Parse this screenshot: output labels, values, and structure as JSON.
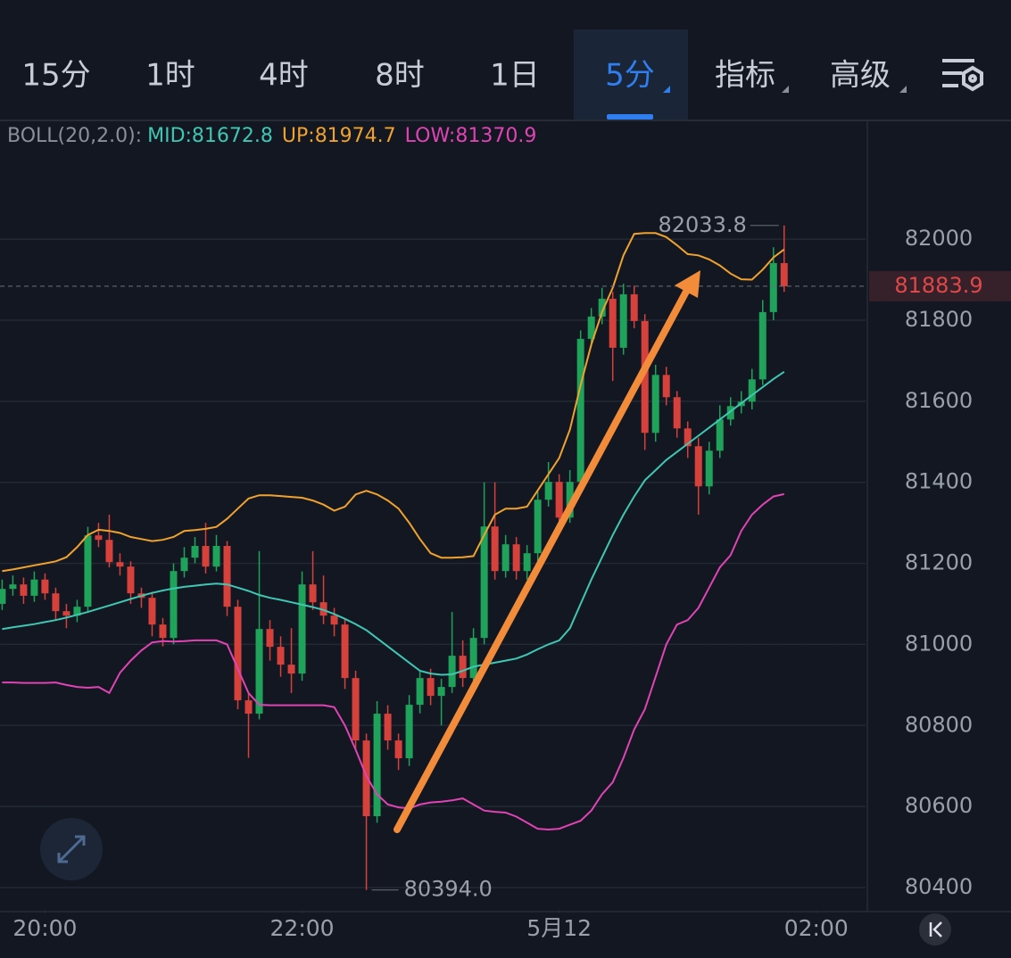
{
  "tabs": [
    "15分",
    "1时",
    "4时",
    "8时",
    "1日",
    "5分",
    "指标",
    "高级"
  ],
  "chart_data": {
    "type": "candlestick",
    "boll_legend": {
      "title": "BOLL(20,2.0):",
      "items": [
        "MID:81672.8",
        "UP:81974.7",
        "LOW:81370.9"
      ]
    },
    "ylim": [
      80345,
      82293
    ],
    "yticks": [
      80400,
      80600,
      80800,
      81000,
      81200,
      81400,
      81600,
      81800,
      82000
    ],
    "xlim": [
      -0.2,
      80.6
    ],
    "xticks": [
      {
        "value": 4,
        "label": "20:00"
      },
      {
        "value": 28,
        "label": "22:00"
      },
      {
        "value": 52,
        "label": "5月12"
      },
      {
        "value": 76,
        "label": "02:00"
      }
    ],
    "grid": true,
    "up_color": "#1fa35a",
    "down_color": "#d6413b",
    "annotations": {
      "high": 82033.8,
      "low": {
        "value": 80394,
        "label": "80394.0"
      },
      "last": 81883.9
    },
    "open": [
      81100,
      81137,
      81148,
      81120,
      81160,
      81126,
      81082,
      81071,
      81093,
      81269,
      81258,
      81203,
      81192,
      81126,
      81115,
      81049,
      81016,
      81181,
      81214,
      81243,
      81192,
      81243,
      81093,
      80862,
      80829,
      81038,
      80994,
      80950,
      80928,
      81148,
      81104,
      81071,
      81049,
      80917,
      80763,
      80576,
      80829,
      80763,
      80719,
      80851,
      80917,
      80873,
      80895,
      80972,
      80917,
      81016,
      81291,
      81181,
      81247,
      81181,
      81225,
      81357,
      81401,
      81313,
      81401,
      81754,
      81809,
      81853,
      81732,
      81864,
      81798,
      81522,
      81665,
      81610,
      81533,
      81489,
      81390,
      81478,
      81555,
      81588,
      81599,
      81654,
      81820,
      81941
    ],
    "high": [
      81160,
      81170,
      81165,
      81180,
      81175,
      81140,
      81100,
      81110,
      81290,
      81300,
      81320,
      81225,
      81205,
      81140,
      81130,
      81065,
      81200,
      81240,
      81265,
      81300,
      81270,
      81255,
      81110,
      80880,
      81230,
      81060,
      81020,
      81040,
      81180,
      81230,
      81170,
      81090,
      81065,
      80935,
      80780,
      80860,
      80850,
      80780,
      80875,
      80935,
      80940,
      80915,
      81080,
      81010,
      81040,
      81400,
      81400,
      81270,
      81265,
      81245,
      81380,
      81450,
      81420,
      81430,
      81775,
      81830,
      81880,
      81870,
      81890,
      81885,
      81815,
      81690,
      81685,
      81625,
      81550,
      81510,
      81500,
      81590,
      81610,
      81625,
      81680,
      81850,
      81980,
      82033.8
    ],
    "low": [
      81085,
      81120,
      81100,
      81105,
      81110,
      81060,
      81040,
      81055,
      81080,
      81240,
      81190,
      81170,
      81100,
      81090,
      81020,
      80995,
      81000,
      81165,
      81200,
      81175,
      81180,
      81070,
      80840,
      80720,
      80815,
      80960,
      80920,
      80880,
      80910,
      81085,
      81050,
      81020,
      80890,
      80740,
      80394,
      80560,
      80740,
      80690,
      80700,
      80830,
      80850,
      80800,
      80880,
      80895,
      80900,
      81000,
      81160,
      81165,
      81160,
      81160,
      81205,
      81340,
      81290,
      81300,
      81385,
      81735,
      81790,
      81650,
      81715,
      81780,
      81480,
      81500,
      81590,
      81510,
      81460,
      81320,
      81370,
      81460,
      81540,
      81570,
      81580,
      81640,
      81800,
      81870
    ],
    "close": [
      81137,
      81148,
      81120,
      81160,
      81126,
      81082,
      81071,
      81093,
      81269,
      81258,
      81203,
      81192,
      81126,
      81115,
      81049,
      81016,
      81181,
      81214,
      81243,
      81192,
      81243,
      81093,
      80862,
      80829,
      81038,
      80994,
      80950,
      80928,
      81148,
      81104,
      81071,
      81049,
      80917,
      80763,
      80576,
      80829,
      80763,
      80719,
      80851,
      80917,
      80873,
      80895,
      80972,
      80917,
      81016,
      81291,
      81181,
      81247,
      81181,
      81225,
      81357,
      81401,
      81313,
      81401,
      81754,
      81809,
      81853,
      81732,
      81864,
      81798,
      81522,
      81665,
      81610,
      81533,
      81489,
      81390,
      81478,
      81555,
      81588,
      81599,
      81654,
      81820,
      81941,
      81883.9
    ],
    "series": [
      {
        "name": "MID",
        "color": "#3fc7b3",
        "values": [
          81038,
          81042,
          81046,
          81050,
          81055,
          81060,
          81066,
          81073,
          81080,
          81088,
          81096,
          81104,
          81112,
          81120,
          81127,
          81133,
          81138,
          81142,
          81145,
          81148,
          81150,
          81148,
          81140,
          81132,
          81122,
          81115,
          81110,
          81104,
          81098,
          81092,
          81085,
          81075,
          81063,
          81050,
          81035,
          81015,
          80995,
          80975,
          80955,
          80935,
          80928,
          80925,
          80926,
          80935,
          80945,
          80950,
          80955,
          80960,
          80965,
          80975,
          80988,
          81000,
          81010,
          81040,
          81100,
          81160,
          81215,
          81270,
          81320,
          81365,
          81405,
          81430,
          81455,
          81475,
          81495,
          81515,
          81535,
          81555,
          81575,
          81595,
          81615,
          81635,
          81655,
          81672.8
        ]
      },
      {
        "name": "UP",
        "color": "#f0a22e",
        "values": [
          81181,
          81185,
          81190,
          81195,
          81200,
          81205,
          81215,
          81240,
          81270,
          81283,
          81280,
          81275,
          81265,
          81260,
          81255,
          81258,
          81265,
          81280,
          81282,
          81285,
          81290,
          81310,
          81335,
          81360,
          81368,
          81368,
          81366,
          81364,
          81362,
          81355,
          81345,
          81330,
          81340,
          81370,
          81379,
          81370,
          81355,
          81335,
          81300,
          81260,
          81225,
          81214,
          81214,
          81215,
          81218,
          81270,
          81320,
          81335,
          81335,
          81340,
          81380,
          81420,
          81460,
          81530,
          81640,
          81740,
          81820,
          81880,
          81960,
          82013,
          82015,
          82015,
          82005,
          81985,
          81963,
          81960,
          81950,
          81935,
          81915,
          81901,
          81900,
          81925,
          81955,
          81974.7
        ]
      },
      {
        "name": "LOW",
        "color": "#e044b4",
        "values": [
          80906,
          80906,
          80905,
          80905,
          80905,
          80906,
          80900,
          80895,
          80893,
          80895,
          80880,
          80930,
          80960,
          80985,
          81005,
          81008,
          81007,
          81008,
          81010,
          81010,
          81010,
          81000,
          80940,
          80880,
          80851,
          80850,
          80850,
          80850,
          80850,
          80850,
          80850,
          80845,
          80800,
          80740,
          80675,
          80630,
          80605,
          80598,
          80595,
          80605,
          80610,
          80612,
          80615,
          80620,
          80605,
          80590,
          80587,
          80585,
          80575,
          80560,
          80545,
          80543,
          80545,
          80555,
          80565,
          80590,
          80630,
          80660,
          80720,
          80790,
          80840,
          80920,
          81000,
          81049,
          81060,
          81090,
          81140,
          81190,
          81220,
          81280,
          81320,
          81345,
          81365,
          81370.9
        ]
      }
    ]
  }
}
